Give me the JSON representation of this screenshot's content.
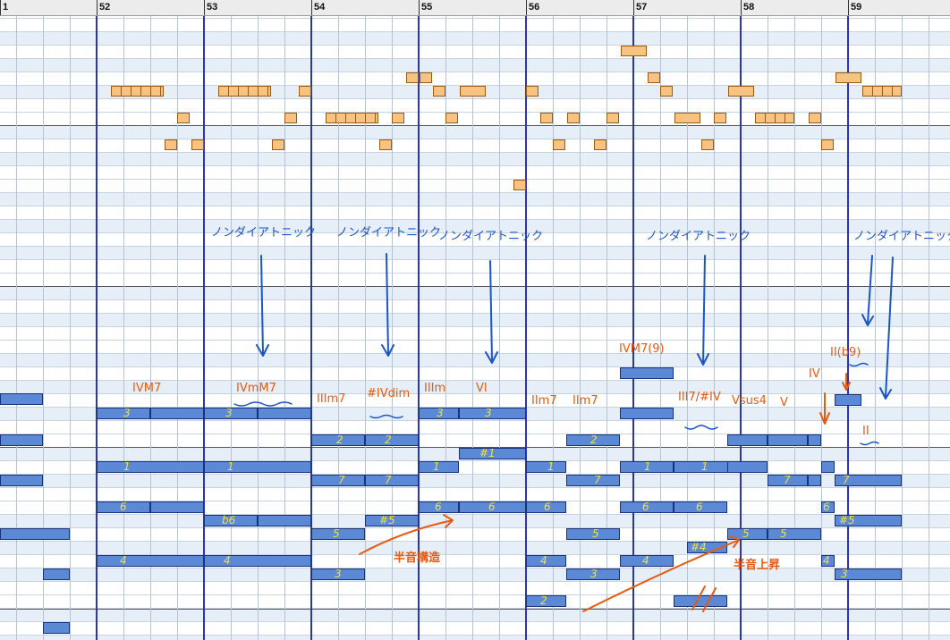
{
  "ruler": {
    "measures": [
      "1",
      "52",
      "53",
      "54",
      "55",
      "56",
      "57",
      "58",
      "59"
    ]
  },
  "colors": {
    "melody_fill": "#f7c382",
    "chord_fill": "#5b89d6",
    "degree_text": "#f2e23a",
    "chord_annotation": "#e85a10",
    "nondiatonic_annotation": "#1b55c8",
    "measure_line": "#2b36a8"
  },
  "degree_labels": [
    "3",
    "3",
    "3",
    "3",
    "2",
    "2",
    "#1",
    "2",
    "1",
    "1",
    "1",
    "1",
    "1",
    "1",
    "7",
    "7",
    "7",
    "7",
    "7",
    "6",
    "b6",
    "#5",
    "6",
    "6",
    "6",
    "6",
    "6",
    "6",
    "#5",
    "5",
    "5",
    "5",
    "5",
    "4",
    "4",
    "4",
    "4",
    "#4",
    "4",
    "3",
    "3",
    "3",
    "2"
  ],
  "chord_annotations": [
    "IVM7",
    "IVmM7",
    "IIIm7",
    "#IVdim",
    "IIIm",
    "VI",
    "IIm7",
    "IIm7",
    "IVM7(9)",
    "III7/#IV",
    "Vsus4",
    "V",
    "IV",
    "II(b9)",
    "II"
  ],
  "nondiatonic_labels": [
    "ノンダイアトニック",
    "ノンダイアトニック",
    "ノンダイアトニック",
    "ノンダイアトニック",
    "ノンダイアトニック"
  ],
  "remarks": [
    "半音構造",
    "半音上昇"
  ]
}
